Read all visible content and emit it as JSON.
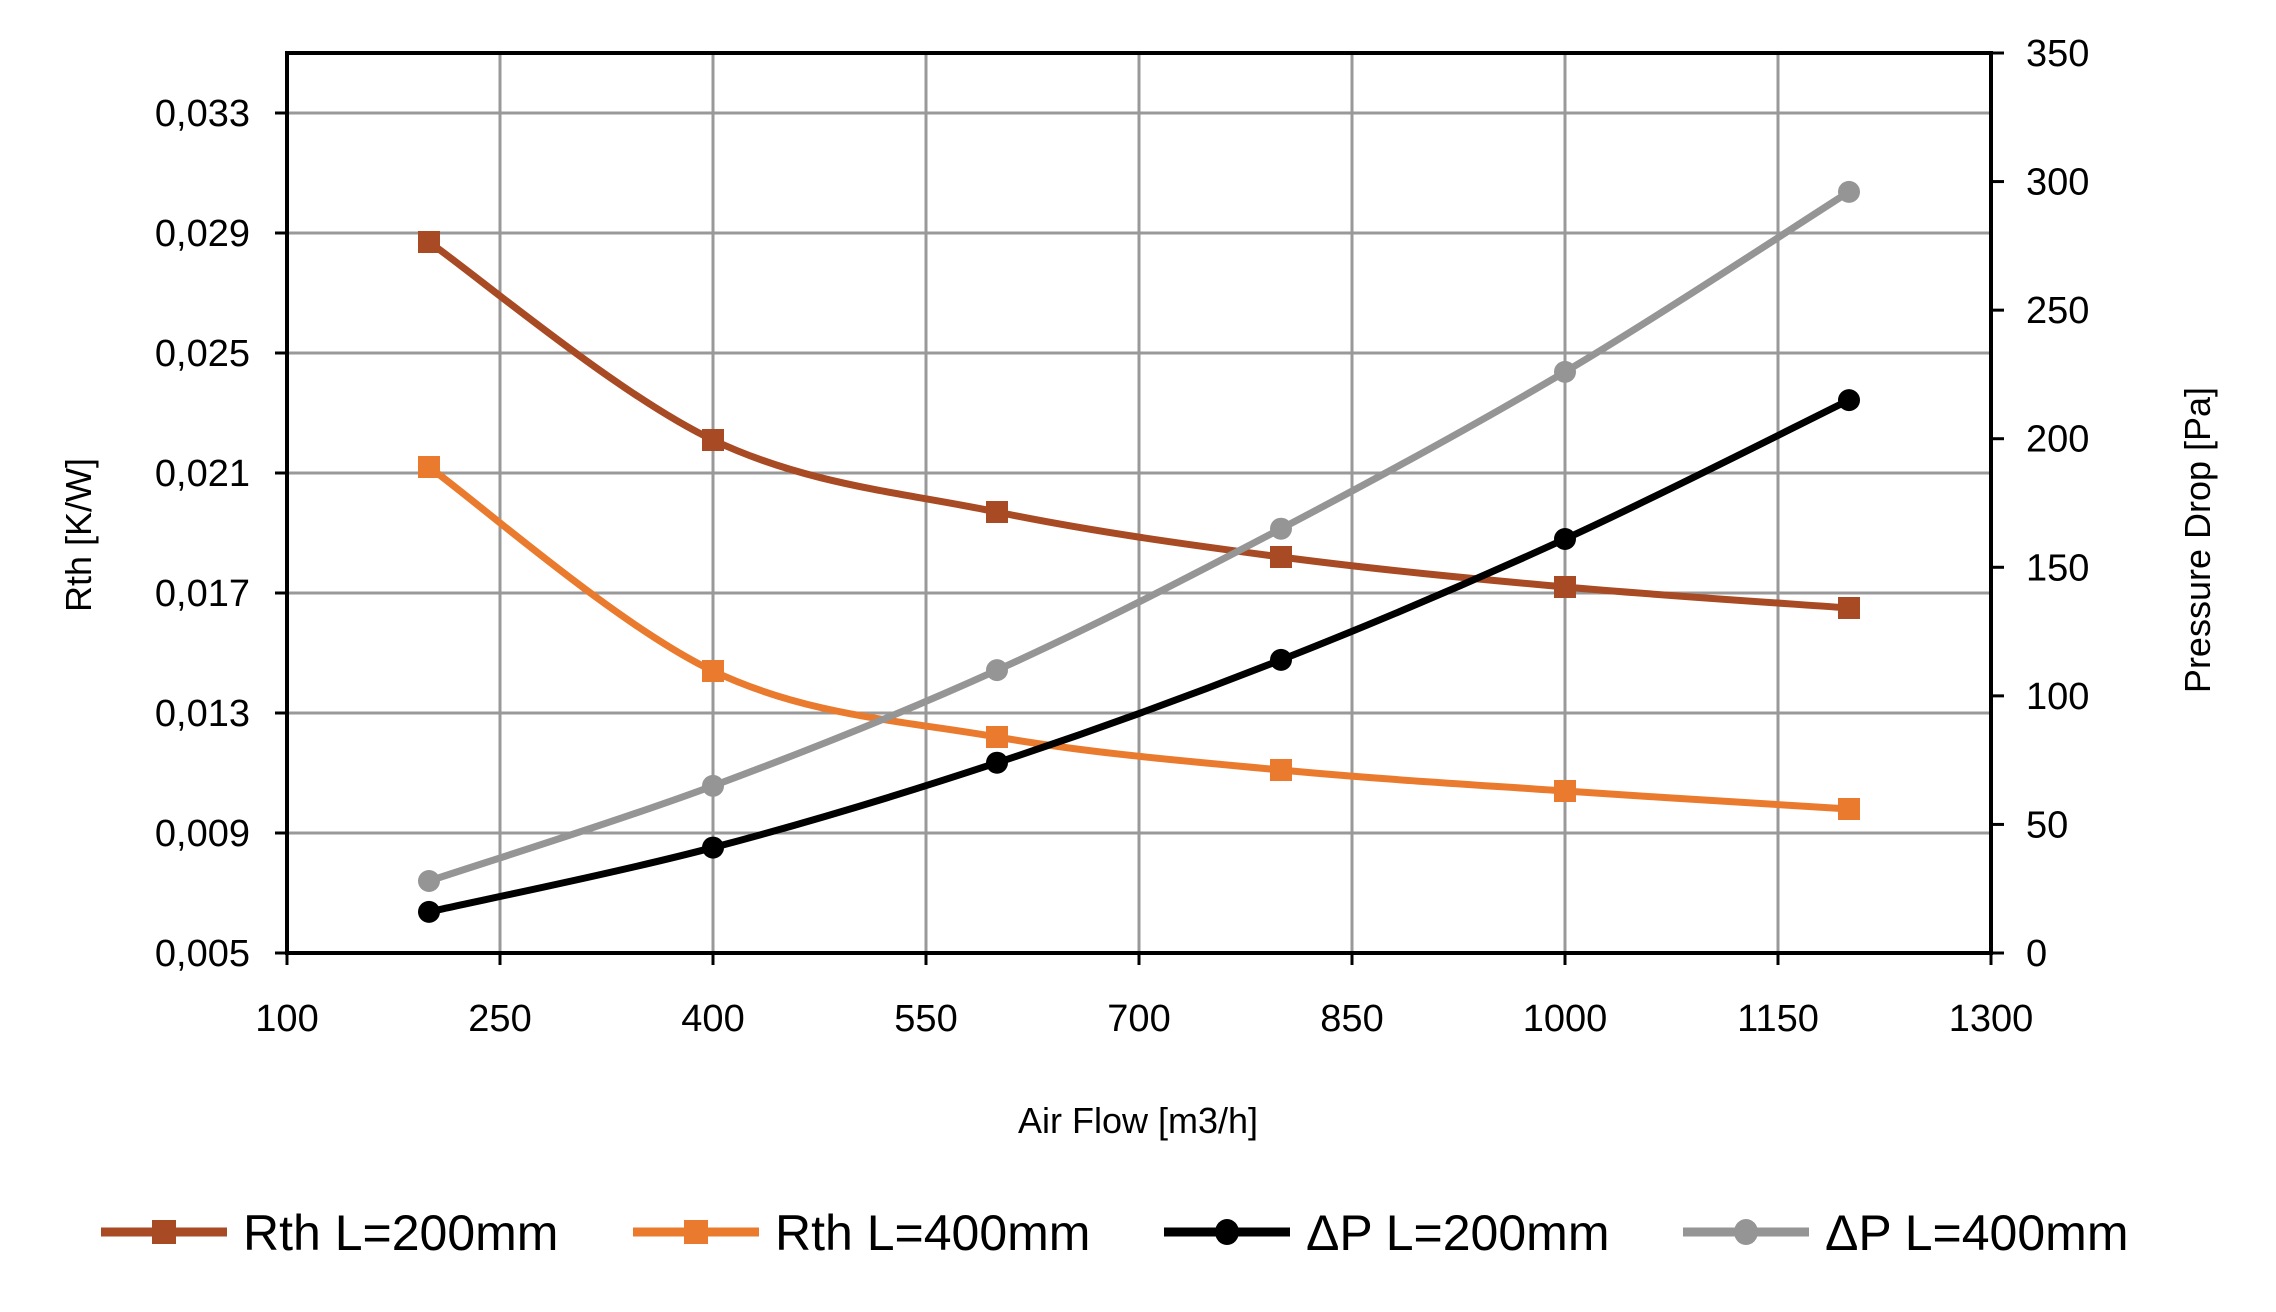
{
  "chart_data": {
    "type": "line",
    "title": "",
    "xlabel": "Air Flow [m3/h]",
    "ylabel": "Rth [K/W]",
    "y2label": "Pressure Drop [Pa]",
    "xlim": [
      100,
      1300
    ],
    "ylim": [
      0.005,
      0.035
    ],
    "y2lim": [
      0,
      350
    ],
    "grid": true,
    "smooth": true,
    "legend_position": "bottom",
    "x_ticks": [
      "100",
      "250",
      "400",
      "550",
      "700",
      "850",
      "1000",
      "1150",
      "1300"
    ],
    "x_tick_values": [
      100,
      250,
      400,
      550,
      700,
      850,
      1000,
      1150,
      1300
    ],
    "y_ticks": [
      "0,005",
      "0,009",
      "0,013",
      "0,017",
      "0,021",
      "0,025",
      "0,029",
      "0,033"
    ],
    "y_tick_values": [
      0.005,
      0.009,
      0.013,
      0.017,
      0.021,
      0.025,
      0.029,
      0.033
    ],
    "y2_ticks": [
      "0",
      "50",
      "100",
      "150",
      "200",
      "250",
      "300",
      "350"
    ],
    "y2_tick_values": [
      0,
      50,
      100,
      150,
      200,
      250,
      300,
      350
    ],
    "x": [
      200,
      400,
      600,
      800,
      1000,
      1200
    ],
    "series": [
      {
        "name": "Rth L=200mm",
        "axis": "left",
        "marker": "square",
        "color": "#a84a23",
        "values": [
          0.0287,
          0.0221,
          0.0197,
          0.0182,
          0.0172,
          0.0165
        ]
      },
      {
        "name": "Rth L=400mm",
        "axis": "left",
        "marker": "square",
        "color": "#ea7b2e",
        "values": [
          0.0212,
          0.0144,
          0.0122,
          0.0111,
          0.0104,
          0.0098
        ]
      },
      {
        "name": "ΔP L=200mm",
        "axis": "right",
        "marker": "circle",
        "color": "#000000",
        "values": [
          16,
          41,
          74,
          114,
          161,
          215
        ]
      },
      {
        "name": "ΔP L=400mm",
        "axis": "right",
        "marker": "circle",
        "color": "#959595",
        "values": [
          28,
          65,
          110,
          165,
          226,
          296
        ]
      }
    ]
  },
  "colors": {
    "grid": "#999999",
    "axis": "#000000"
  }
}
